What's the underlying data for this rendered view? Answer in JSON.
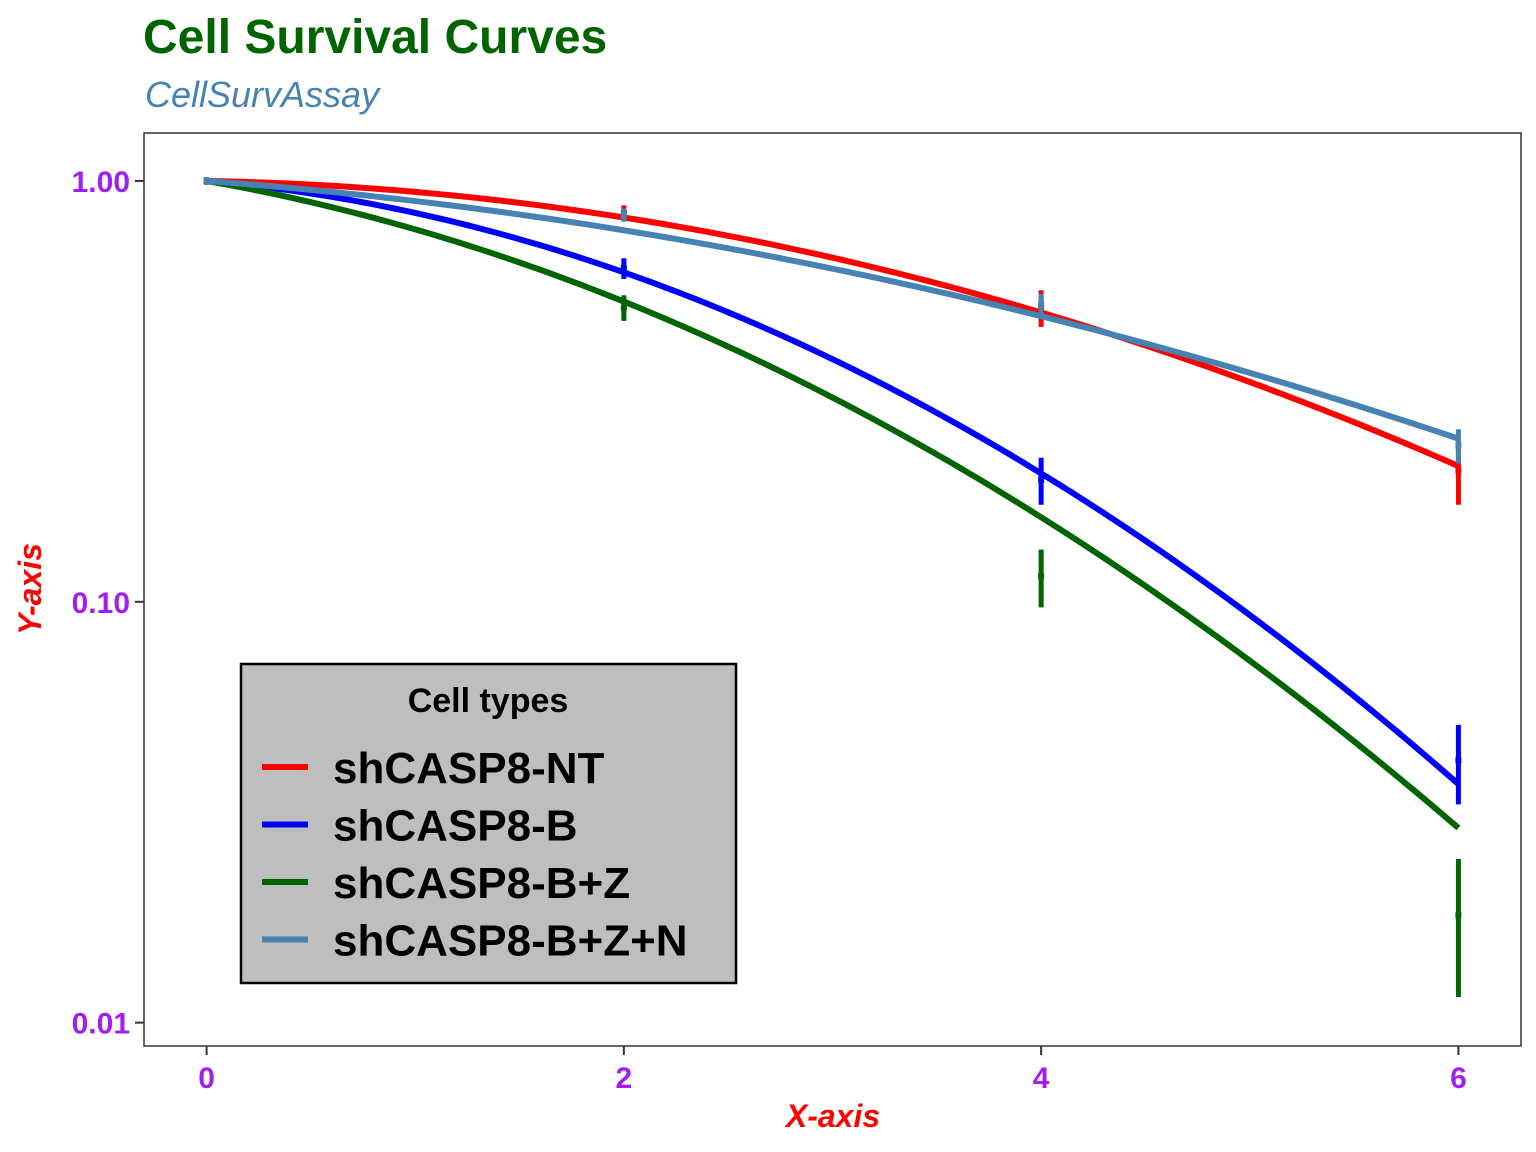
{
  "colors": {
    "title": "#006400",
    "subtitle": "#4682B4",
    "tick_labels": "#A020F0",
    "axis_titles": "#FF0000",
    "legend_background": "#BEBEBE",
    "panel_border": "#333333"
  },
  "chart_data": {
    "type": "line",
    "title": "Cell Survival Curves",
    "subtitle": "CellSurvAssay",
    "xlabel": "X-axis",
    "ylabel": "Y-axis",
    "x_scale": "linear",
    "y_scale": "log10",
    "xlim": [
      -0.3,
      6.3
    ],
    "ylim": [
      0.0088,
      1.3
    ],
    "x_ticks": [
      0,
      2,
      4,
      6
    ],
    "x_tick_labels": [
      "0",
      "2",
      "4",
      "6"
    ],
    "y_ticks": [
      1,
      0.1,
      0.01
    ],
    "y_tick_labels": [
      "1.00",
      "0.10",
      "0.01"
    ],
    "grid": false,
    "legend": {
      "title": "Cell types",
      "position": "bottom-left"
    },
    "x": [
      0,
      2,
      4,
      6
    ],
    "series": [
      {
        "name": "shCASP8-NT",
        "color": "#FF0000",
        "line_width": 6,
        "alpha": 0.02,
        "beta": 0.04,
        "points": [
          1.0,
          0.84,
          0.5,
          0.205
        ],
        "errors": [
          0.02,
          0.035,
          0.05,
          0.035
        ]
      },
      {
        "name": "shCASP8-B",
        "color": "#0000FF",
        "line_width": 6,
        "alpha": 0.1,
        "beta": 0.075,
        "points": [
          1.0,
          0.62,
          0.195,
          0.042
        ],
        "errors": [
          0.02,
          0.035,
          0.025,
          0.009
        ]
      },
      {
        "name": "shCASP8-B+Z",
        "color": "#006400",
        "line_width": 6,
        "alpha": 0.2,
        "beta": 0.065,
        "points": [
          1.0,
          0.5,
          0.115,
          0.018
        ],
        "errors": [
          0.02,
          0.035,
          0.018,
          0.0065
        ]
      },
      {
        "name": "shCASP8-B+Z+N",
        "color": "#4682B4",
        "line_width": 6,
        "alpha": 0.085,
        "beta": 0.025,
        "points": [
          1.0,
          0.83,
          0.51,
          0.235
        ],
        "errors": [
          0.02,
          0.03,
          0.03,
          0.022
        ]
      }
    ]
  }
}
